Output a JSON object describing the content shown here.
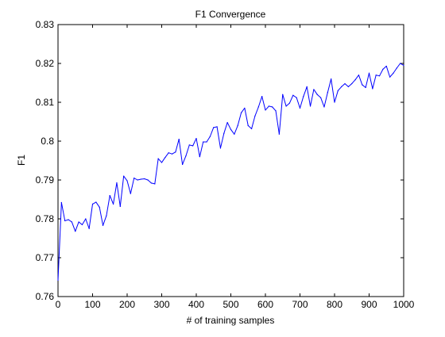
{
  "chart_data": {
    "type": "line",
    "title": "F1 Convergence",
    "xlabel": "# of training samples",
    "ylabel": "F1",
    "xlim": [
      0,
      1000
    ],
    "ylim": [
      0.76,
      0.83
    ],
    "xticks": [
      0,
      100,
      200,
      300,
      400,
      500,
      600,
      700,
      800,
      900,
      1000
    ],
    "xtick_labels": [
      "0",
      "100",
      "200",
      "300",
      "400",
      "500",
      "600",
      "700",
      "800",
      "900",
      "1000"
    ],
    "yticks": [
      0.76,
      0.77,
      0.78,
      0.79,
      0.8,
      0.81,
      0.82,
      0.83
    ],
    "ytick_labels": [
      "0.76",
      "0.77",
      "0.78",
      "0.79",
      "0.8",
      "0.81",
      "0.82",
      "0.83"
    ],
    "grid": false,
    "series": [
      {
        "color": "#0000ff",
        "x": [
          0,
          10,
          20,
          30,
          40,
          50,
          60,
          70,
          80,
          90,
          100,
          110,
          120,
          130,
          140,
          150,
          160,
          170,
          180,
          190,
          200,
          210,
          220,
          230,
          240,
          250,
          260,
          270,
          280,
          290,
          300,
          310,
          320,
          330,
          340,
          350,
          360,
          370,
          380,
          390,
          400,
          410,
          420,
          430,
          440,
          450,
          460,
          470,
          480,
          490,
          500,
          510,
          520,
          530,
          540,
          550,
          560,
          570,
          580,
          590,
          600,
          610,
          620,
          630,
          640,
          650,
          660,
          670,
          680,
          690,
          700,
          710,
          720,
          730,
          740,
          750,
          760,
          770,
          780,
          790,
          800,
          810,
          820,
          830,
          840,
          850,
          860,
          870,
          880,
          890,
          900,
          910,
          920,
          930,
          940,
          950,
          960,
          970,
          980,
          990,
          1000
        ],
        "y": [
          0.7642,
          0.7842,
          0.7795,
          0.7798,
          0.7792,
          0.7768,
          0.7792,
          0.7785,
          0.78,
          0.7775,
          0.7838,
          0.7843,
          0.783,
          0.7783,
          0.7808,
          0.786,
          0.7838,
          0.7893,
          0.7832,
          0.791,
          0.7898,
          0.7865,
          0.7905,
          0.79,
          0.7902,
          0.7903,
          0.79,
          0.7892,
          0.789,
          0.7955,
          0.7945,
          0.7958,
          0.797,
          0.7967,
          0.7972,
          0.8005,
          0.794,
          0.7962,
          0.799,
          0.7988,
          0.8007,
          0.796,
          0.7998,
          0.7998,
          0.8012,
          0.8035,
          0.8037,
          0.7982,
          0.802,
          0.8048,
          0.803,
          0.8018,
          0.804,
          0.8073,
          0.8085,
          0.804,
          0.8032,
          0.8065,
          0.8088,
          0.8115,
          0.808,
          0.809,
          0.8088,
          0.8078,
          0.8018,
          0.812,
          0.809,
          0.8098,
          0.8118,
          0.8112,
          0.8085,
          0.8115,
          0.814,
          0.809,
          0.8133,
          0.812,
          0.8112,
          0.8088,
          0.8125,
          0.816,
          0.81,
          0.813,
          0.814,
          0.8148,
          0.814,
          0.8148,
          0.8158,
          0.817,
          0.8145,
          0.8138,
          0.8175,
          0.8135,
          0.817,
          0.8168,
          0.8185,
          0.8193,
          0.8165,
          0.8175,
          0.8188,
          0.82,
          0.8195
        ]
      }
    ]
  }
}
